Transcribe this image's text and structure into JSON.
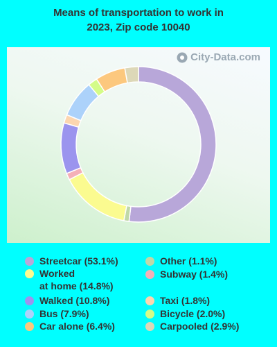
{
  "title_line1": "Means of transportation to work in",
  "title_line2": "2023, Zip code 10040",
  "watermark": "City-Data.com",
  "chart_data": {
    "type": "pie",
    "variant": "donut",
    "title": "Means of transportation to work in 2023, Zip code 10040",
    "slices": [
      {
        "label": "Streetcar",
        "value": 53.1,
        "color": "#b8a7d9"
      },
      {
        "label": "Other",
        "value": 1.1,
        "color": "#c0d8a8"
      },
      {
        "label": "Worked at home",
        "value": 14.8,
        "color": "#fbfb90"
      },
      {
        "label": "Subway",
        "value": 1.4,
        "color": "#f4b0b8"
      },
      {
        "label": "Walked",
        "value": 10.8,
        "color": "#9b94ee"
      },
      {
        "label": "Taxi",
        "value": 1.8,
        "color": "#fcd6b0"
      },
      {
        "label": "Bus",
        "value": 7.9,
        "color": "#acd2fa"
      },
      {
        "label": "Bicycle",
        "value": 2.0,
        "color": "#d4fc88"
      },
      {
        "label": "Car alone",
        "value": 6.4,
        "color": "#fcc87e"
      },
      {
        "label": "Carpooled",
        "value": 2.9,
        "color": "#ddd8b8"
      }
    ]
  },
  "legend": {
    "left": [
      {
        "text": "Streetcar (53.1%)",
        "color": "#b8a7d9"
      },
      {
        "text": "Worked",
        "text2": "at home (14.8%)",
        "color": "#fbfb90"
      },
      {
        "text": "Walked (10.8%)",
        "color": "#9b94ee"
      },
      {
        "text": "Bus (7.9%)",
        "color": "#acd2fa"
      },
      {
        "text": "Car alone (6.4%)",
        "color": "#fcc87e"
      }
    ],
    "right": [
      {
        "text": "Other (1.1%)",
        "color": "#c0d8a8"
      },
      {
        "text": "Subway (1.4%)",
        "color": "#f4b0b8"
      },
      {
        "text": "Taxi (1.8%)",
        "color": "#fcd6b0"
      },
      {
        "text": "Bicycle (2.0%)",
        "color": "#d4fc88"
      },
      {
        "text": "Carpooled (2.9%)",
        "color": "#ddd8b8"
      }
    ]
  }
}
